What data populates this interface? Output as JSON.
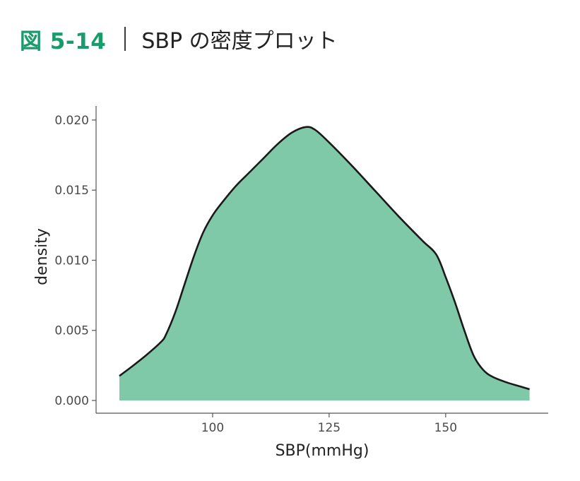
{
  "figure": {
    "label": "図 5-14",
    "caption": "SBP の密度プロット",
    "label_color": "#1a9b6c"
  },
  "chart_data": {
    "type": "area",
    "title": "",
    "xlabel": "SBP(mmHg)",
    "ylabel": "density",
    "xlim": [
      75,
      172
    ],
    "ylim": [
      0,
      0.0205
    ],
    "xticks": [
      100,
      125,
      150
    ],
    "xtick_labels": [
      "100",
      "125",
      "150"
    ],
    "yticks": [
      0,
      0.005,
      0.01,
      0.015,
      0.02
    ],
    "ytick_labels": [
      "0.000",
      "0.005",
      "0.010",
      "0.015",
      "0.020"
    ],
    "grid": false,
    "fill_color": "#80c9a8",
    "line_color": "#1a1a1a",
    "x": [
      80,
      83,
      86,
      89,
      90,
      92,
      94,
      96,
      98,
      100,
      102,
      105,
      108,
      111,
      114,
      117,
      120,
      122,
      125,
      130,
      135,
      140,
      145,
      148,
      150,
      152,
      154,
      156,
      158,
      160,
      163,
      166,
      168
    ],
    "density": [
      0.00175,
      0.0025,
      0.0033,
      0.0042,
      0.0047,
      0.0063,
      0.0083,
      0.0103,
      0.012,
      0.0132,
      0.0141,
      0.0153,
      0.0163,
      0.0173,
      0.0183,
      0.0191,
      0.0195,
      0.0193,
      0.0184,
      0.0167,
      0.0149,
      0.0131,
      0.0114,
      0.0104,
      0.0088,
      0.007,
      0.005,
      0.0032,
      0.0022,
      0.0017,
      0.0013,
      0.001,
      0.0008
    ]
  }
}
